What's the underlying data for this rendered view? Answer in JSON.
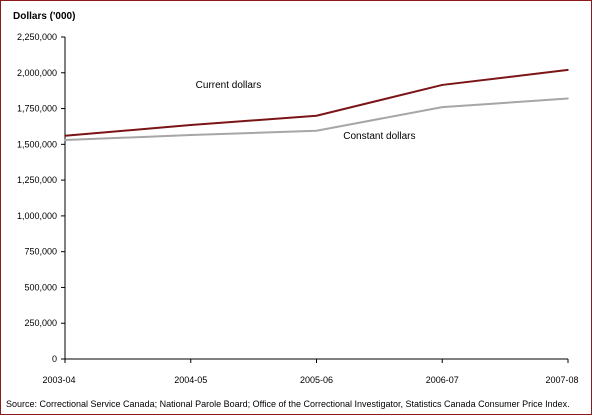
{
  "chart_data": {
    "type": "line",
    "title": "",
    "ylabel": "Dollars ('000)",
    "xlabel": "",
    "categories": [
      "2003-04",
      "2004-05",
      "2005-06",
      "2006-07",
      "2007-08"
    ],
    "ylim": [
      0,
      2250000
    ],
    "yticks": [
      0,
      250000,
      500000,
      750000,
      1000000,
      1250000,
      1500000,
      1750000,
      2000000,
      2250000
    ],
    "ytick_labels": [
      "0",
      "250,000",
      "500,000",
      "750,000",
      "1,000,000",
      "1,250,000",
      "1,500,000",
      "1,750,000",
      "2,000,000",
      "2,250,000"
    ],
    "grid": false,
    "series": [
      {
        "name": "Current dollars",
        "values": [
          1560000,
          1635000,
          1700000,
          1915000,
          2020000
        ],
        "color": "#7b1416",
        "label_at": 1.3
      },
      {
        "name": "Constant dollars",
        "values": [
          1530000,
          1565000,
          1595000,
          1760000,
          1820000
        ],
        "color": "#a6a6a6",
        "label_at": 2.5
      }
    ]
  },
  "source_note": "Source: Correctional Service Canada; National Parole Board; Office of the Correctional Investigator, Statistics Canada Consumer Price Index."
}
